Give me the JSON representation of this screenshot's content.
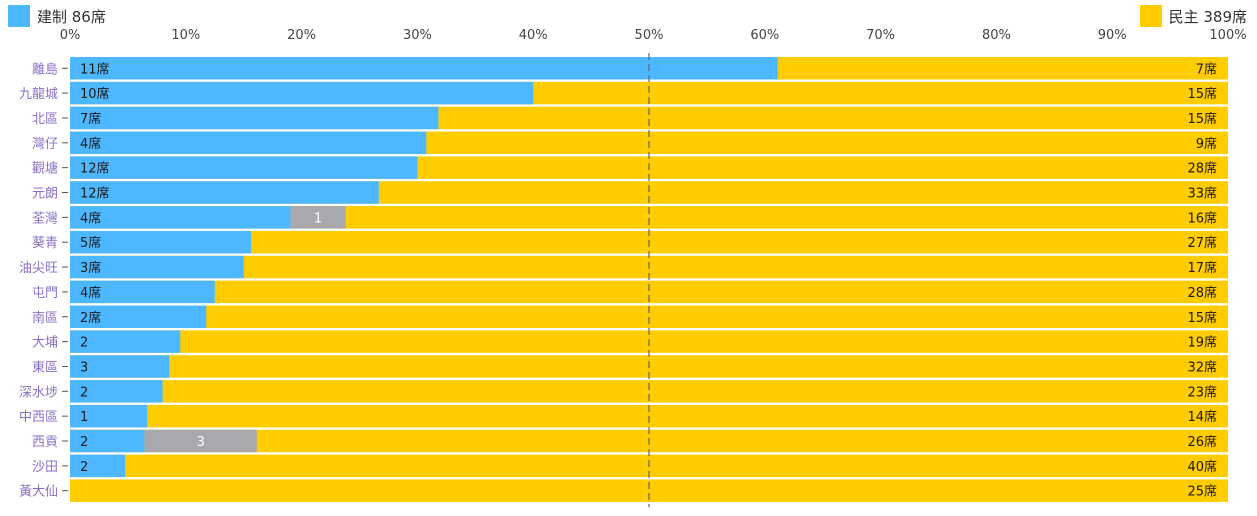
{
  "colors": {
    "pro_establishment": "#4db8ff",
    "pro_democracy": "#ffcc00",
    "independent": "#a9a9ad",
    "district_label": "#8a6fc8",
    "axis_text": "#444444",
    "midline": "#666666"
  },
  "legend": {
    "left_label": "建制 86席",
    "right_label": "民主 389席"
  },
  "chart_data": {
    "type": "bar",
    "orientation": "horizontal",
    "stacked": true,
    "percent_scale": true,
    "x_ticks": [
      "0%",
      "10%",
      "20%",
      "30%",
      "40%",
      "50%",
      "60%",
      "70%",
      "80%",
      "90%",
      "100%"
    ],
    "xlim": [
      0,
      100
    ],
    "midline_percent": 50,
    "legend_placement": "top",
    "series_keys": [
      "pro_establishment",
      "independent",
      "pro_democracy"
    ],
    "districts": [
      {
        "name": "離島",
        "pro_establishment": 11,
        "independent": 0,
        "pro_democracy": 7,
        "pro_establishment_label": "11席",
        "independent_label": "",
        "pro_democracy_label": "7席"
      },
      {
        "name": "九龍城",
        "pro_establishment": 10,
        "independent": 0,
        "pro_democracy": 15,
        "pro_establishment_label": "10席",
        "independent_label": "",
        "pro_democracy_label": "15席"
      },
      {
        "name": "北區",
        "pro_establishment": 7,
        "independent": 0,
        "pro_democracy": 15,
        "pro_establishment_label": "7席",
        "independent_label": "",
        "pro_democracy_label": "15席"
      },
      {
        "name": "灣仔",
        "pro_establishment": 4,
        "independent": 0,
        "pro_democracy": 9,
        "pro_establishment_label": "4席",
        "independent_label": "",
        "pro_democracy_label": "9席"
      },
      {
        "name": "觀塘",
        "pro_establishment": 12,
        "independent": 0,
        "pro_democracy": 28,
        "pro_establishment_label": "12席",
        "independent_label": "",
        "pro_democracy_label": "28席"
      },
      {
        "name": "元朗",
        "pro_establishment": 12,
        "independent": 0,
        "pro_democracy": 33,
        "pro_establishment_label": "12席",
        "independent_label": "",
        "pro_democracy_label": "33席"
      },
      {
        "name": "荃灣",
        "pro_establishment": 4,
        "independent": 1,
        "pro_democracy": 16,
        "pro_establishment_label": "4席",
        "independent_label": "1",
        "pro_democracy_label": "16席"
      },
      {
        "name": "葵青",
        "pro_establishment": 5,
        "independent": 0,
        "pro_democracy": 27,
        "pro_establishment_label": "5席",
        "independent_label": "",
        "pro_democracy_label": "27席"
      },
      {
        "name": "油尖旺",
        "pro_establishment": 3,
        "independent": 0,
        "pro_democracy": 17,
        "pro_establishment_label": "3席",
        "independent_label": "",
        "pro_democracy_label": "17席"
      },
      {
        "name": "屯門",
        "pro_establishment": 4,
        "independent": 0,
        "pro_democracy": 28,
        "pro_establishment_label": "4席",
        "independent_label": "",
        "pro_democracy_label": "28席"
      },
      {
        "name": "南區",
        "pro_establishment": 2,
        "independent": 0,
        "pro_democracy": 15,
        "pro_establishment_label": "2席",
        "independent_label": "",
        "pro_democracy_label": "15席"
      },
      {
        "name": "大埔",
        "pro_establishment": 2,
        "independent": 0,
        "pro_democracy": 19,
        "pro_establishment_label": "2",
        "independent_label": "",
        "pro_democracy_label": "19席"
      },
      {
        "name": "東區",
        "pro_establishment": 3,
        "independent": 0,
        "pro_democracy": 32,
        "pro_establishment_label": "3",
        "independent_label": "",
        "pro_democracy_label": "32席"
      },
      {
        "name": "深水埗",
        "pro_establishment": 2,
        "independent": 0,
        "pro_democracy": 23,
        "pro_establishment_label": "2",
        "independent_label": "",
        "pro_democracy_label": "23席"
      },
      {
        "name": "中西區",
        "pro_establishment": 1,
        "independent": 0,
        "pro_democracy": 14,
        "pro_establishment_label": "1",
        "independent_label": "",
        "pro_democracy_label": "14席"
      },
      {
        "name": "西貢",
        "pro_establishment": 2,
        "independent": 3,
        "pro_democracy": 26,
        "pro_establishment_label": "2",
        "independent_label": "3",
        "pro_democracy_label": "26席"
      },
      {
        "name": "沙田",
        "pro_establishment": 2,
        "independent": 0,
        "pro_democracy": 40,
        "pro_establishment_label": "2",
        "independent_label": "",
        "pro_democracy_label": "40席"
      },
      {
        "name": "黃大仙",
        "pro_establishment": 0,
        "independent": 0,
        "pro_democracy": 25,
        "pro_establishment_label": "",
        "independent_label": "",
        "pro_democracy_label": "25席"
      }
    ]
  }
}
